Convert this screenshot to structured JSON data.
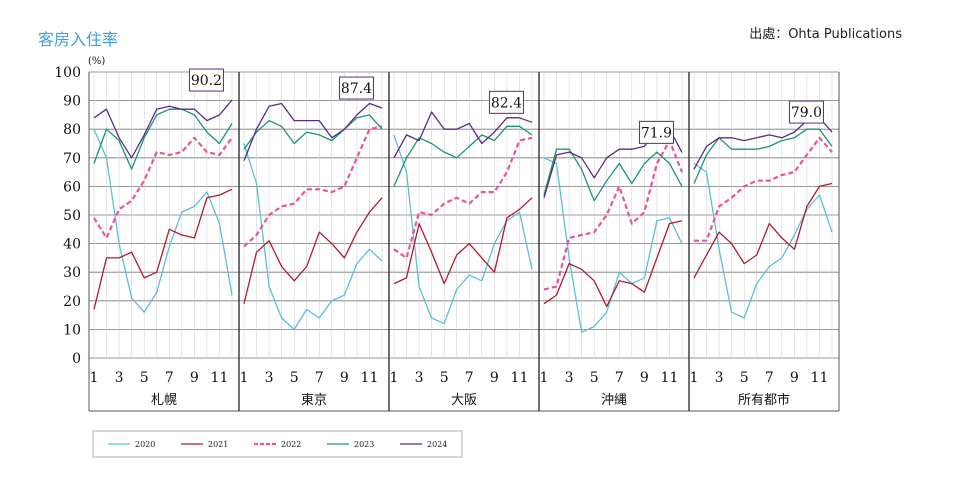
{
  "header": {
    "title": "客房入住率",
    "source": "出處：Ohta Publications"
  },
  "chart_data": {
    "type": "line",
    "unit": "(%)",
    "ylim": [
      0,
      100
    ],
    "yticks": [
      "0",
      "10",
      "20",
      "30",
      "40",
      "50",
      "60",
      "70",
      "80",
      "90",
      "100"
    ],
    "xticks": [
      "1",
      "3",
      "5",
      "7",
      "9",
      "11"
    ],
    "months": [
      1,
      2,
      3,
      4,
      5,
      6,
      7,
      8,
      9,
      10,
      11,
      12
    ],
    "colors": {
      "2020": "#5bbfd6",
      "2021": "#b11a2b",
      "2022": "#e8559a",
      "2023": "#1a9479",
      "2024": "#5b2a86"
    },
    "legend": [
      {
        "name": "2020",
        "dashed": false
      },
      {
        "name": "2021",
        "dashed": false
      },
      {
        "name": "2022",
        "dashed": true
      },
      {
        "name": "2023",
        "dashed": false
      },
      {
        "name": "2024",
        "dashed": false
      }
    ],
    "panels": [
      {
        "name": "札幌",
        "annotation": "90.2",
        "series": {
          "2020": [
            80,
            70,
            40,
            21,
            16,
            23,
            39,
            51,
            53,
            58,
            47,
            22
          ],
          "2021": [
            17,
            35,
            35,
            37,
            28,
            30,
            45,
            43,
            42,
            56,
            57,
            59
          ],
          "2022": [
            49,
            42,
            52,
            55,
            62,
            72,
            71,
            72,
            77,
            72,
            71,
            77
          ],
          "2023": [
            68,
            80,
            76,
            66,
            77,
            85,
            87,
            87,
            85,
            79,
            75,
            82
          ],
          "2024": [
            84,
            87,
            77,
            70,
            78,
            87,
            88,
            87,
            87,
            83,
            85,
            90.2
          ]
        }
      },
      {
        "name": "東京",
        "annotation": "87.4",
        "series": {
          "2020": [
            75,
            61,
            25,
            14,
            10,
            17,
            14,
            20,
            22,
            33,
            38,
            34
          ],
          "2021": [
            19,
            37,
            41,
            32,
            27,
            32,
            44,
            40,
            35,
            44,
            51,
            56
          ],
          "2022": [
            39,
            43,
            50,
            53,
            54,
            59,
            59,
            58,
            60,
            70,
            80,
            81
          ],
          "2023": [
            73,
            79,
            83,
            81,
            75,
            79,
            78,
            76,
            80,
            84,
            85,
            80
          ],
          "2024": [
            69,
            80,
            88,
            89,
            83,
            83,
            83,
            77,
            80,
            85,
            89,
            87.4
          ]
        }
      },
      {
        "name": "大阪",
        "annotation": "82.4",
        "series": {
          "2020": [
            78,
            65,
            25,
            14,
            12,
            24,
            29,
            27,
            40,
            48,
            51,
            31
          ],
          "2021": [
            26,
            28,
            47,
            37,
            26,
            36,
            40,
            35,
            30,
            49,
            52,
            56
          ],
          "2022": [
            38,
            35,
            51,
            50,
            54,
            56,
            54,
            58,
            58,
            65,
            76,
            77
          ],
          "2023": [
            60,
            70,
            77,
            75,
            72,
            70,
            74,
            78,
            76,
            81,
            81,
            78
          ],
          "2024": [
            70,
            78,
            76,
            86,
            80,
            80,
            82,
            75,
            79,
            84,
            84,
            82.4
          ]
        }
      },
      {
        "name": "沖縄",
        "annotation": "71.9",
        "series": {
          "2020": [
            70,
            68,
            35,
            9,
            11,
            16,
            30,
            26,
            28,
            48,
            49,
            40
          ],
          "2021": [
            19,
            22,
            33,
            31,
            27,
            18,
            27,
            26,
            23,
            35,
            47,
            48
          ],
          "2022": [
            24,
            25,
            42,
            43,
            44,
            50,
            60,
            47,
            51,
            68,
            76,
            65
          ],
          "2023": [
            57,
            73,
            73,
            66,
            55,
            62,
            68,
            61,
            68,
            72,
            68,
            60
          ],
          "2024": [
            56,
            71,
            72,
            70,
            63,
            70,
            73,
            73,
            74,
            80,
            80,
            71.9
          ]
        }
      },
      {
        "name": "所有都市",
        "annotation": "79.0",
        "series": {
          "2020": [
            68,
            65,
            38,
            16,
            14,
            26,
            32,
            35,
            43,
            52,
            57,
            44
          ],
          "2021": [
            28,
            36,
            44,
            40,
            33,
            36,
            47,
            42,
            38,
            53,
            60,
            61
          ],
          "2022": [
            41,
            41,
            53,
            56,
            60,
            62,
            62,
            64,
            65,
            71,
            77,
            72
          ],
          "2023": [
            61,
            71,
            77,
            73,
            73,
            73,
            74,
            76,
            77,
            80,
            80,
            74
          ],
          "2024": [
            66,
            74,
            77,
            77,
            76,
            77,
            78,
            77,
            79,
            83,
            84,
            79.0
          ]
        }
      }
    ]
  }
}
